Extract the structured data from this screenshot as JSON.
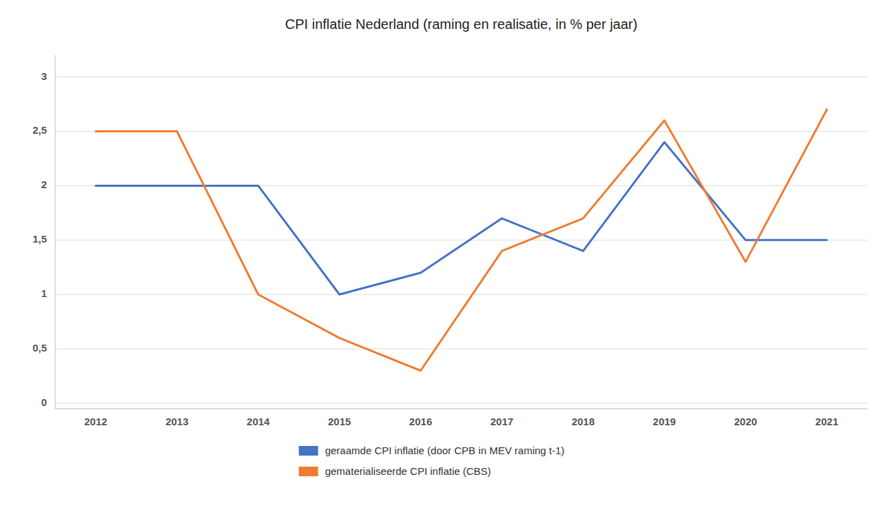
{
  "chart_data": {
    "type": "line",
    "title": "CPI inflatie Nederland (raming en realisatie, in % per jaar)",
    "x": [
      2012,
      2013,
      2014,
      2015,
      2016,
      2017,
      2018,
      2019,
      2020,
      2021
    ],
    "series": [
      {
        "name": "geraamde CPI inflatie (door CPB in MEV raming t-1)",
        "color": "#4472C4",
        "values": [
          2.0,
          2.0,
          2.0,
          1.0,
          1.2,
          1.7,
          1.4,
          2.4,
          1.5,
          1.5
        ]
      },
      {
        "name": "gematerialiseerde CPI inflatie (CBS)",
        "color": "#ED7D31",
        "values": [
          2.5,
          2.5,
          1.0,
          0.6,
          0.3,
          1.4,
          1.7,
          2.6,
          1.3,
          2.7
        ]
      }
    ],
    "xlim": [
      2011.5,
      2021.5
    ],
    "xticks": [
      2012,
      2013,
      2014,
      2015,
      2016,
      2017,
      2018,
      2019,
      2020,
      2021
    ],
    "ylim": [
      -0.05,
      3.2
    ],
    "yticks": [
      0,
      {
        "value": 0.5,
        "label": "0,5"
      },
      1,
      {
        "value": 1.5,
        "label": "1,5"
      },
      2,
      {
        "value": 2.5,
        "label": "2,5"
      },
      3
    ],
    "grid": true,
    "legend": "bottom"
  }
}
